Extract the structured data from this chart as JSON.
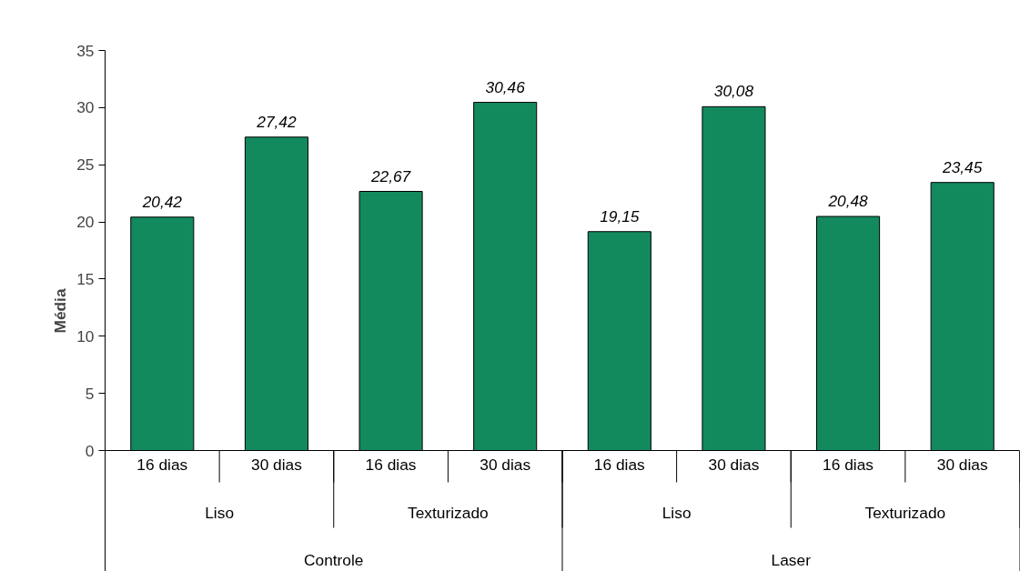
{
  "chart_data": {
    "type": "bar",
    "ylabel": "Média",
    "categories": [
      "16 dias",
      "30 dias",
      "16 dias",
      "30 dias",
      "16 dias",
      "30 dias",
      "16 dias",
      "30 dias"
    ],
    "values": [
      20.42,
      27.42,
      22.67,
      30.46,
      19.15,
      30.08,
      20.48,
      23.45
    ],
    "value_labels": [
      "20,42",
      "27,42",
      "22,67",
      "30,46",
      "19,15",
      "30,08",
      "20,48",
      "23,45"
    ],
    "color": "#138a5e",
    "annotations": [
      "Liso",
      "Texturizado",
      "Liso",
      "Texturizado",
      "Controle",
      "Laser"
    ],
    "ylim": [
      0,
      35
    ],
    "yticks": [
      0,
      5,
      10,
      15,
      20,
      25,
      30,
      35
    ],
    "grid": false
  }
}
